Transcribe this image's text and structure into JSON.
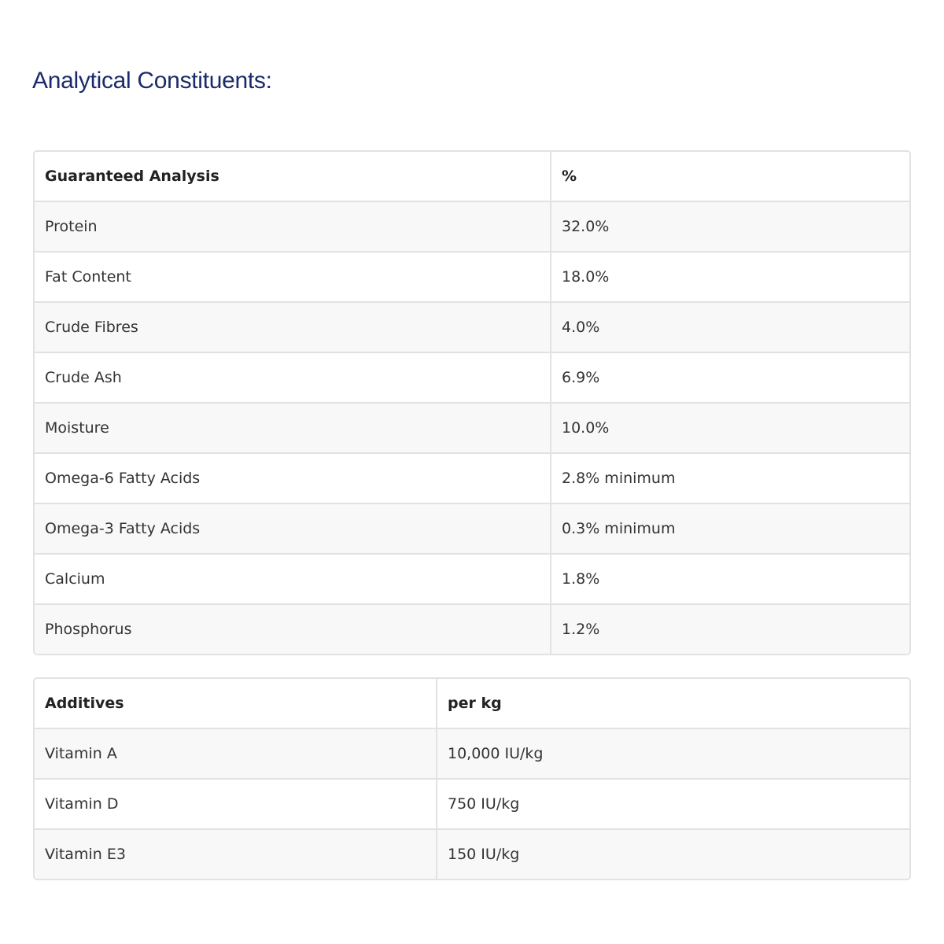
{
  "title": "Analytical Constituents:",
  "analysis": {
    "headers": [
      "Guaranteed Analysis",
      "%"
    ],
    "rows": [
      [
        "Protein",
        "32.0%"
      ],
      [
        "Fat Content",
        "18.0%"
      ],
      [
        "Crude Fibres",
        "4.0%"
      ],
      [
        "Crude Ash",
        "6.9%"
      ],
      [
        "Moisture",
        "10.0%"
      ],
      [
        "Omega-6 Fatty Acids",
        "2.8% minimum"
      ],
      [
        "Omega-3 Fatty Acids",
        "0.3% minimum"
      ],
      [
        "Calcium",
        "1.8%"
      ],
      [
        "Phosphorus",
        "1.2%"
      ]
    ]
  },
  "additives": {
    "headers": [
      "Additives",
      "per kg"
    ],
    "rows": [
      [
        "Vitamin A",
        "10,000 IU/kg"
      ],
      [
        "Vitamin D",
        "750 IU/kg"
      ],
      [
        "Vitamin E3",
        "150 IU/kg"
      ]
    ]
  }
}
